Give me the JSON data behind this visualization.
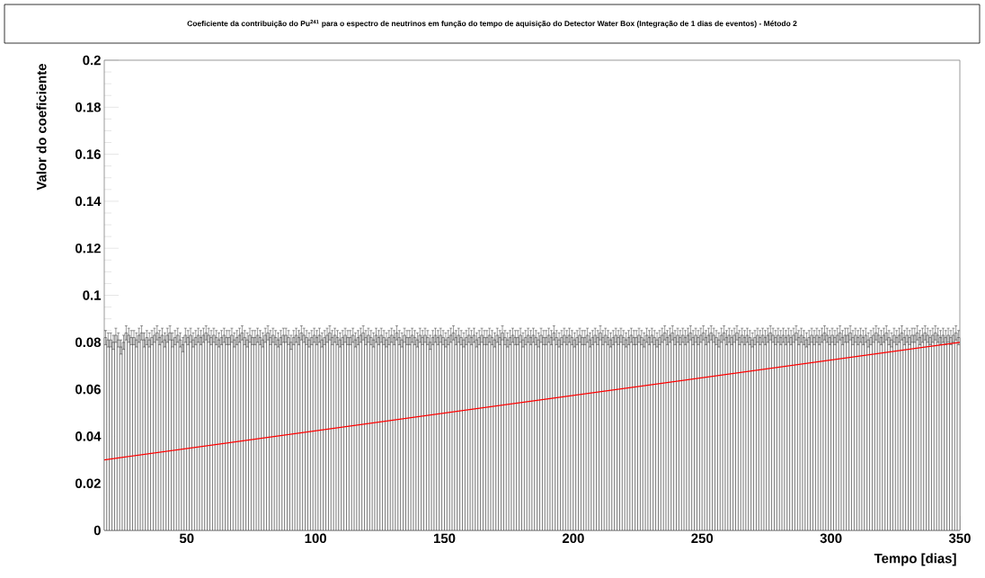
{
  "chart_data": {
    "type": "histogram",
    "title": "Coeficiente da contribuição do Pu$^{241}$ para o espectro de neutrinos em função do tempo de aquisição do Detector Water Box (Integração de 1 dias de eventos) - Método 2",
    "xlabel": "Tempo [dias]",
    "ylabel": "Valor do coeficiente",
    "bins": [
      18,
      19,
      20,
      21,
      22,
      23,
      24,
      25,
      26,
      27,
      28,
      29,
      30,
      31,
      32,
      33,
      34,
      35,
      36,
      37,
      38,
      39,
      40,
      41,
      42,
      43,
      44,
      45,
      46,
      47,
      48,
      49,
      50,
      51,
      52,
      53,
      54,
      55,
      56,
      57,
      58,
      59,
      60,
      61,
      62,
      63,
      64,
      65,
      66,
      67,
      68,
      69,
      70,
      71,
      72,
      73,
      74,
      75,
      76,
      77,
      78,
      79,
      80,
      81,
      82,
      83,
      84,
      85,
      86,
      87,
      88,
      89,
      90,
      91,
      92,
      93,
      94,
      95,
      96,
      97,
      98,
      99,
      100,
      101,
      102,
      103,
      104,
      105,
      106,
      107,
      108,
      109,
      110,
      111,
      112,
      113,
      114,
      115,
      116,
      117,
      118,
      119,
      120,
      121,
      122,
      123,
      124,
      125,
      126,
      127,
      128,
      129,
      130,
      131,
      132,
      133,
      134,
      135,
      136,
      137,
      138,
      139,
      140,
      141,
      142,
      143,
      144,
      145,
      146,
      147,
      148,
      149,
      150,
      151,
      152,
      153,
      154,
      155,
      156,
      157,
      158,
      159,
      160,
      161,
      162,
      163,
      164,
      165,
      166,
      167,
      168,
      169,
      170,
      171,
      172,
      173,
      174,
      175,
      176,
      177,
      178,
      179,
      180,
      181,
      182,
      183,
      184,
      185,
      186,
      187,
      188,
      189,
      190,
      191,
      192,
      193,
      194,
      195,
      196,
      197,
      198,
      199,
      200,
      201,
      202,
      203,
      204,
      205,
      206,
      207,
      208,
      209,
      210,
      211,
      212,
      213,
      214,
      215,
      216,
      217,
      218,
      219,
      220,
      221,
      222,
      223,
      224,
      225,
      226,
      227,
      228,
      229,
      230,
      231,
      232,
      233,
      234,
      235,
      236,
      237,
      238,
      239,
      240,
      241,
      242,
      243,
      244,
      245,
      246,
      247,
      248,
      249,
      250,
      251,
      252,
      253,
      254,
      255,
      256,
      257,
      258,
      259,
      260,
      261,
      262,
      263,
      264,
      265,
      266,
      267,
      268,
      269,
      270,
      271,
      272,
      273,
      274,
      275,
      276,
      277,
      278,
      279,
      280,
      281,
      282,
      283,
      284,
      285,
      286,
      287,
      288,
      289,
      290,
      291,
      292,
      293,
      294,
      295,
      296,
      297,
      298,
      299,
      300,
      301,
      302,
      303,
      304,
      305,
      306,
      307,
      308,
      309,
      310,
      311,
      312,
      313,
      314,
      315,
      316,
      317,
      318,
      319,
      320,
      321,
      322,
      323,
      324,
      325,
      326,
      327,
      328,
      329,
      330,
      331,
      332,
      333,
      334,
      335,
      336,
      337,
      338,
      339,
      340,
      341,
      342,
      343,
      344,
      345,
      346,
      347,
      348,
      349,
      350
    ],
    "values": [
      0.082,
      0.081,
      0.081,
      0.08,
      0.083,
      0.081,
      0.078,
      0.08,
      0.084,
      0.083,
      0.082,
      0.082,
      0.081,
      0.083,
      0.084,
      0.081,
      0.082,
      0.081,
      0.082,
      0.083,
      0.084,
      0.082,
      0.083,
      0.081,
      0.083,
      0.084,
      0.081,
      0.082,
      0.083,
      0.081,
      0.079,
      0.083,
      0.082,
      0.083,
      0.081,
      0.082,
      0.083,
      0.082,
      0.083,
      0.084,
      0.083,
      0.082,
      0.083,
      0.082,
      0.081,
      0.082,
      0.083,
      0.082,
      0.082,
      0.083,
      0.081,
      0.082,
      0.083,
      0.084,
      0.082,
      0.081,
      0.083,
      0.082,
      0.082,
      0.083,
      0.082,
      0.081,
      0.083,
      0.084,
      0.082,
      0.083,
      0.082,
      0.081,
      0.082,
      0.083,
      0.083,
      0.082,
      0.08,
      0.082,
      0.083,
      0.082,
      0.084,
      0.083,
      0.082,
      0.081,
      0.082,
      0.083,
      0.082,
      0.083,
      0.081,
      0.082,
      0.083,
      0.084,
      0.082,
      0.083,
      0.082,
      0.081,
      0.082,
      0.083,
      0.082,
      0.082,
      0.083,
      0.081,
      0.082,
      0.083,
      0.084,
      0.082,
      0.083,
      0.082,
      0.081,
      0.083,
      0.082,
      0.083,
      0.082,
      0.081,
      0.082,
      0.083,
      0.082,
      0.084,
      0.082,
      0.081,
      0.083,
      0.082,
      0.082,
      0.083,
      0.082,
      0.081,
      0.083,
      0.082,
      0.083,
      0.082,
      0.08,
      0.082,
      0.083,
      0.082,
      0.083,
      0.082,
      0.081,
      0.082,
      0.083,
      0.084,
      0.082,
      0.083,
      0.082,
      0.081,
      0.082,
      0.083,
      0.082,
      0.083,
      0.081,
      0.082,
      0.083,
      0.082,
      0.082,
      0.083,
      0.082,
      0.081,
      0.083,
      0.082,
      0.084,
      0.082,
      0.081,
      0.082,
      0.083,
      0.082,
      0.082,
      0.083,
      0.081,
      0.082,
      0.083,
      0.082,
      0.083,
      0.082,
      0.081,
      0.083,
      0.082,
      0.082,
      0.083,
      0.082,
      0.084,
      0.082,
      0.081,
      0.082,
      0.083,
      0.082,
      0.083,
      0.082,
      0.081,
      0.082,
      0.083,
      0.082,
      0.082,
      0.083,
      0.081,
      0.082,
      0.083,
      0.082,
      0.084,
      0.082,
      0.083,
      0.082,
      0.081,
      0.082,
      0.083,
      0.082,
      0.083,
      0.082,
      0.081,
      0.082,
      0.083,
      0.082,
      0.082,
      0.083,
      0.082,
      0.081,
      0.083,
      0.082,
      0.083,
      0.082,
      0.081,
      0.082,
      0.083,
      0.084,
      0.082,
      0.083,
      0.084,
      0.082,
      0.083,
      0.082,
      0.083,
      0.082,
      0.083,
      0.084,
      0.082,
      0.083,
      0.082,
      0.083,
      0.084,
      0.082,
      0.083,
      0.084,
      0.083,
      0.082,
      0.081,
      0.083,
      0.084,
      0.082,
      0.083,
      0.082,
      0.083,
      0.084,
      0.082,
      0.083,
      0.082,
      0.083,
      0.082,
      0.081,
      0.082,
      0.083,
      0.082,
      0.083,
      0.082,
      0.083,
      0.084,
      0.083,
      0.082,
      0.083,
      0.082,
      0.083,
      0.082,
      0.083,
      0.082,
      0.083,
      0.084,
      0.082,
      0.083,
      0.082,
      0.081,
      0.082,
      0.083,
      0.082,
      0.083,
      0.082,
      0.083,
      0.084,
      0.083,
      0.082,
      0.083,
      0.082,
      0.083,
      0.084,
      0.082,
      0.083,
      0.083,
      0.084,
      0.082,
      0.083,
      0.082,
      0.083,
      0.082,
      0.083,
      0.081,
      0.082,
      0.083,
      0.084,
      0.083,
      0.082,
      0.083,
      0.084,
      0.082,
      0.081,
      0.083,
      0.082,
      0.083,
      0.084,
      0.082,
      0.083,
      0.082,
      0.083,
      0.083,
      0.084,
      0.082,
      0.083,
      0.084,
      0.083,
      0.082,
      0.083,
      0.084,
      0.083,
      0.082,
      0.083,
      0.082,
      0.083,
      0.082,
      0.083,
      0.084,
      0.082
    ],
    "errors": [
      0.003,
      0.003,
      0.003,
      0.003,
      0.003,
      0.003,
      0.003,
      0.003,
      0.003,
      0.003,
      0.003,
      0.003,
      0.003,
      0.003,
      0.003,
      0.003,
      0.003,
      0.003,
      0.003,
      0.003,
      0.003,
      0.003,
      0.003,
      0.003,
      0.003,
      0.003,
      0.003,
      0.003,
      0.003,
      0.003,
      0.003,
      0.003,
      0.003,
      0.003,
      0.003,
      0.003,
      0.003,
      0.003,
      0.003,
      0.003,
      0.003,
      0.003,
      0.003,
      0.003,
      0.003,
      0.003,
      0.003,
      0.003,
      0.003,
      0.003,
      0.003,
      0.003,
      0.003,
      0.003,
      0.003,
      0.003,
      0.003,
      0.003,
      0.003,
      0.003,
      0.003,
      0.003,
      0.003,
      0.003,
      0.003,
      0.003,
      0.003,
      0.003,
      0.003,
      0.003,
      0.003,
      0.003,
      0.003,
      0.003,
      0.003,
      0.003,
      0.003,
      0.003,
      0.003,
      0.003,
      0.003,
      0.003,
      0.003,
      0.003,
      0.003,
      0.003,
      0.003,
      0.003,
      0.003,
      0.003,
      0.003,
      0.003,
      0.003,
      0.003,
      0.003,
      0.003,
      0.003,
      0.003,
      0.003,
      0.003,
      0.003,
      0.003,
      0.003,
      0.003,
      0.003,
      0.003,
      0.003,
      0.003,
      0.003,
      0.003,
      0.003,
      0.003,
      0.003,
      0.003,
      0.003,
      0.003,
      0.003,
      0.003,
      0.003,
      0.003,
      0.003,
      0.003,
      0.003,
      0.003,
      0.003,
      0.003,
      0.003,
      0.003,
      0.003,
      0.003,
      0.003,
      0.003,
      0.003,
      0.003,
      0.003,
      0.003,
      0.003,
      0.003,
      0.003,
      0.003,
      0.003,
      0.003,
      0.003,
      0.003,
      0.003,
      0.003,
      0.003,
      0.003,
      0.003,
      0.003,
      0.003,
      0.003,
      0.003,
      0.003,
      0.003,
      0.003,
      0.003,
      0.003,
      0.003,
      0.003,
      0.003,
      0.003,
      0.003,
      0.003,
      0.003,
      0.003,
      0.003,
      0.003,
      0.003,
      0.003,
      0.003,
      0.003,
      0.003,
      0.003,
      0.003,
      0.003,
      0.003,
      0.003,
      0.003,
      0.003,
      0.003,
      0.003,
      0.003,
      0.003,
      0.003,
      0.003,
      0.003,
      0.003,
      0.003,
      0.003,
      0.003,
      0.003,
      0.003,
      0.003,
      0.003,
      0.003,
      0.003,
      0.003,
      0.003,
      0.003,
      0.003,
      0.003,
      0.003,
      0.003,
      0.003,
      0.003,
      0.003,
      0.003,
      0.003,
      0.003,
      0.003,
      0.003,
      0.003,
      0.003,
      0.003,
      0.003,
      0.003,
      0.003,
      0.003,
      0.003,
      0.003,
      0.003,
      0.003,
      0.003,
      0.003,
      0.003,
      0.003,
      0.003,
      0.003,
      0.003,
      0.003,
      0.003,
      0.003,
      0.003,
      0.003,
      0.003,
      0.003,
      0.003,
      0.003,
      0.003,
      0.003,
      0.003,
      0.003,
      0.003,
      0.003,
      0.003,
      0.003,
      0.003,
      0.003,
      0.003,
      0.003,
      0.003,
      0.003,
      0.003,
      0.003,
      0.003,
      0.003,
      0.003,
      0.003,
      0.003,
      0.003,
      0.003,
      0.003,
      0.003,
      0.003,
      0.003,
      0.003,
      0.003,
      0.003,
      0.003,
      0.003,
      0.003,
      0.003,
      0.003,
      0.003,
      0.003,
      0.003,
      0.003,
      0.003,
      0.003,
      0.003,
      0.003,
      0.003,
      0.003,
      0.003,
      0.003,
      0.003,
      0.003,
      0.003,
      0.003,
      0.003,
      0.003,
      0.003,
      0.003,
      0.003,
      0.003,
      0.003,
      0.003,
      0.003,
      0.003,
      0.003,
      0.003,
      0.003,
      0.003,
      0.003,
      0.003,
      0.003,
      0.003,
      0.003,
      0.003,
      0.003,
      0.003,
      0.003,
      0.003,
      0.003,
      0.003,
      0.003,
      0.003,
      0.003,
      0.003,
      0.003,
      0.003,
      0.003,
      0.003,
      0.003,
      0.003,
      0.003,
      0.003,
      0.003,
      0.003,
      0.003,
      0.003
    ],
    "color": "#000000",
    "series": [
      {
        "type": "line",
        "color": "#ff0000",
        "x": [
          18,
          350
        ],
        "values": [
          0.03,
          0.08
        ]
      }
    ],
    "xlim": [
      18,
      350
    ],
    "xticks": [
      50,
      100,
      150,
      200,
      250,
      300,
      350
    ],
    "ylim": [
      0,
      0.2
    ],
    "yticks": [
      0,
      0.02,
      0.04,
      0.06,
      0.08,
      0.1,
      0.12,
      0.14,
      0.16,
      0.18,
      0.2
    ],
    "grid": false
  }
}
